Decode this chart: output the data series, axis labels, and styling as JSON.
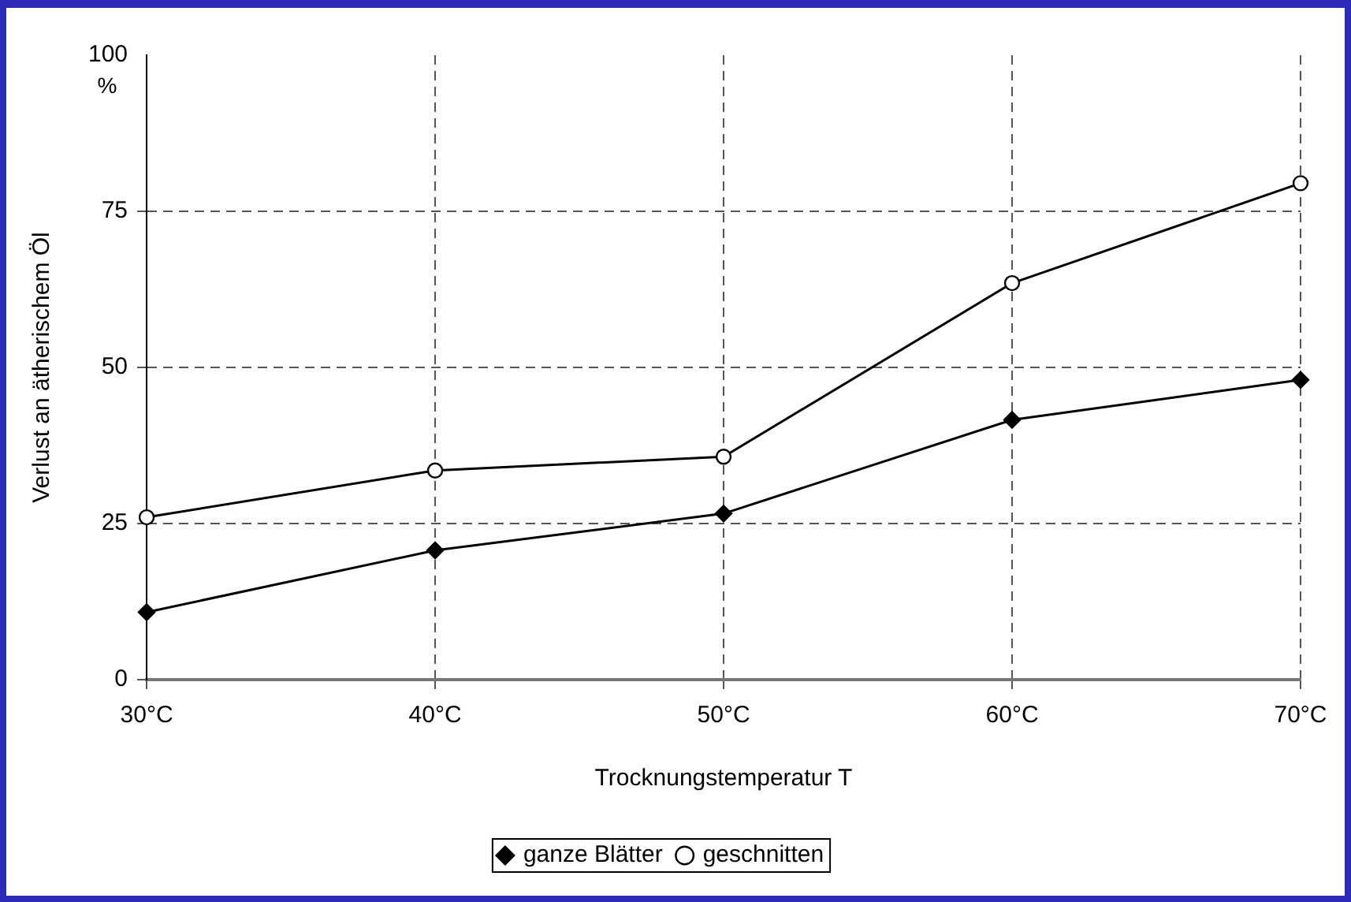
{
  "chart_data": {
    "type": "line",
    "xlabel": "Trocknungstemperatur T",
    "ylabel": "Verlust an ätherischem Öl",
    "annotations": [
      "%"
    ],
    "categories": [
      "30°C",
      "40°C",
      "50°C",
      "60°C",
      "70°C"
    ],
    "series": [
      {
        "name": "ganze Blätter",
        "color": "#000000",
        "marker": "diamond",
        "values": [
          10.8,
          20.7,
          26.6,
          41.6,
          48
        ]
      },
      {
        "name": "geschnitten",
        "color": "#000000",
        "marker": "circle",
        "values": [
          26,
          33.5,
          35.7,
          63.5,
          79.5
        ]
      }
    ],
    "ylim": [
      0,
      100
    ],
    "yticks": [
      0,
      25,
      50,
      75,
      100
    ],
    "grid": true,
    "line_style": "solid",
    "legend": "bottom"
  }
}
